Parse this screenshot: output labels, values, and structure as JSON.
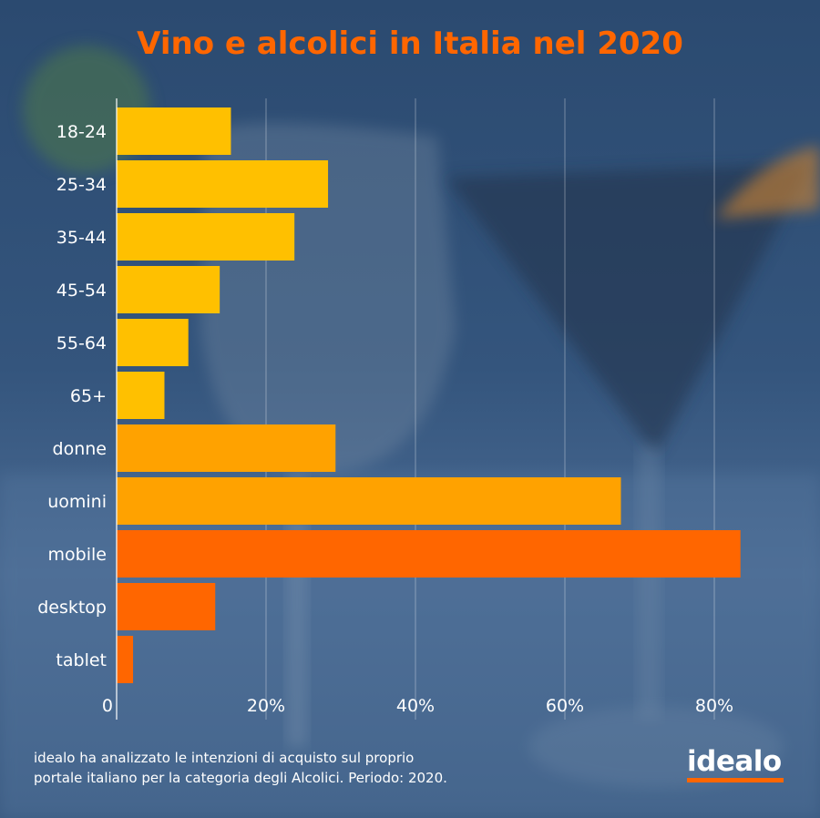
{
  "title": "Vino e alcolici in Italia nel 2020",
  "footnote": {
    "line1": "idealo ha analizzato le intenzioni di acquisto sul proprio",
    "line2": "portale italiano per la categoria degli Alcolici. Periodo: 2020."
  },
  "logo": {
    "text": "idealo"
  },
  "colors": {
    "title": "#ff6600",
    "age": "#ffc000",
    "gender": "#ffa200",
    "device": "#ff6600",
    "text": "#ffffff",
    "grid": "#ffffff"
  },
  "chart_data": {
    "type": "bar",
    "orientation": "horizontal",
    "title": "Vino e alcolici in Italia nel 2020",
    "xlabel": "",
    "ylabel": "",
    "xlim": [
      0,
      90
    ],
    "grid": true,
    "x_ticks": [
      {
        "value": 0,
        "label": "0"
      },
      {
        "value": 20,
        "label": "20%"
      },
      {
        "value": 40,
        "label": "40%"
      },
      {
        "value": 60,
        "label": "60%"
      },
      {
        "value": 80,
        "label": "80%"
      }
    ],
    "bars": [
      {
        "label": "18-24",
        "value": 15.3,
        "group": "age"
      },
      {
        "label": "25-34",
        "value": 28.3,
        "group": "age"
      },
      {
        "label": "35-44",
        "value": 23.8,
        "group": "age"
      },
      {
        "label": "45-54",
        "value": 13.8,
        "group": "age"
      },
      {
        "label": "55-64",
        "value": 9.6,
        "group": "age"
      },
      {
        "label": "65+",
        "value": 6.4,
        "group": "age"
      },
      {
        "label": "donne",
        "value": 29.3,
        "group": "gender"
      },
      {
        "label": "uomini",
        "value": 67.5,
        "group": "gender"
      },
      {
        "label": "mobile",
        "value": 83.5,
        "group": "device"
      },
      {
        "label": "desktop",
        "value": 13.2,
        "group": "device"
      },
      {
        "label": "tablet",
        "value": 2.2,
        "group": "device"
      }
    ]
  }
}
